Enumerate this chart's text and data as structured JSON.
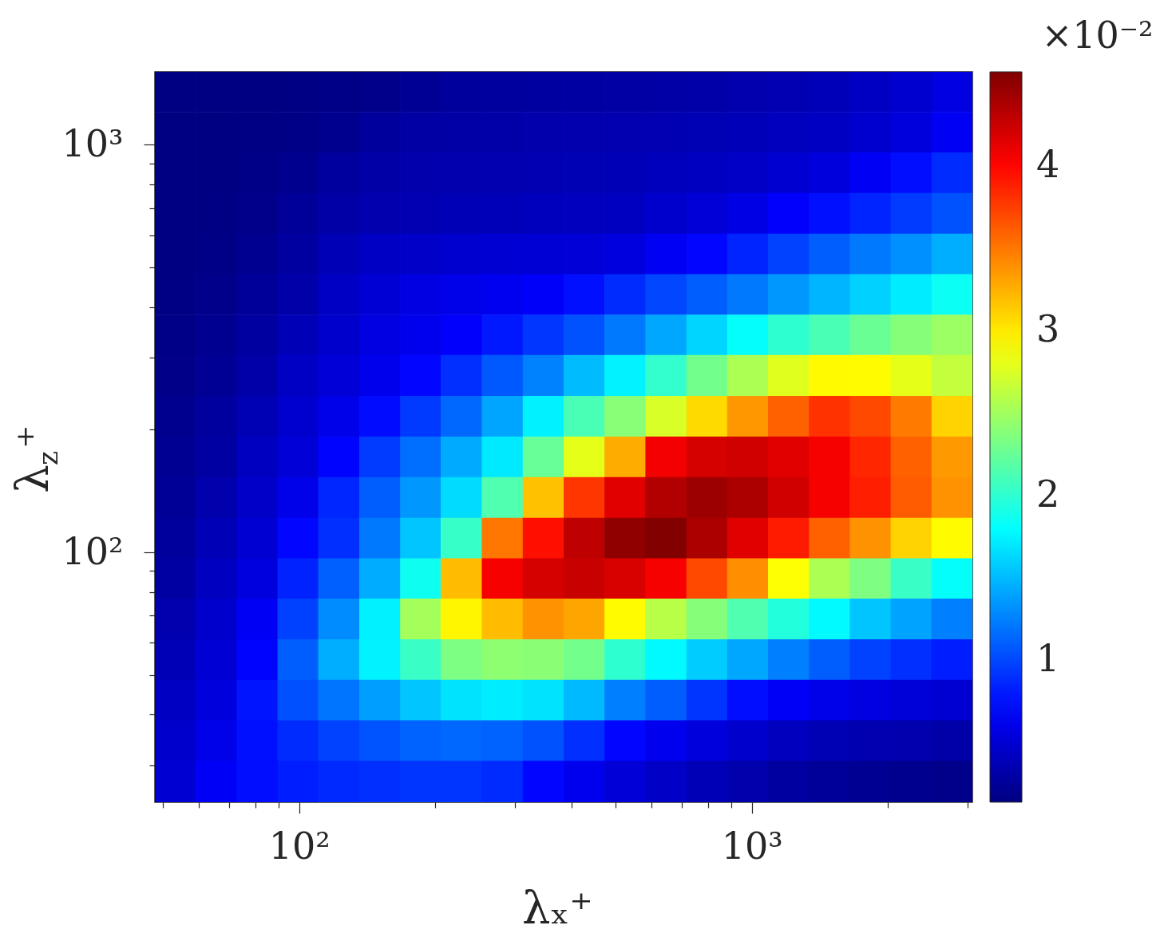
{
  "chart_data": {
    "type": "heatmap",
    "xlabel": "λₓ⁺",
    "ylabel": "λ$_{z}$⁺",
    "clabel": "×10⁻²",
    "x": [
      53.2,
      65.6,
      80.7,
      99.4,
      122,
      151,
      185,
      228,
      281,
      346,
      426,
      524,
      646,
      795,
      978,
      1205,
      1483,
      1826,
      2247,
      2767
    ],
    "y": [
      1346,
      1071,
      851,
      677,
      538,
      428,
      341,
      271,
      215,
      171,
      136,
      108,
      86.1,
      68.5,
      54.4,
      43.3,
      34.4,
      27.4
    ],
    "cells": [
      [
        0.15,
        0.15,
        0.15,
        0.16,
        0.17,
        0.19,
        0.23,
        0.26,
        0.27,
        0.28,
        0.29,
        0.3,
        0.31,
        0.32,
        0.34,
        0.36,
        0.39,
        0.43,
        0.48,
        0.56
      ],
      [
        0.15,
        0.15,
        0.16,
        0.17,
        0.2,
        0.26,
        0.3,
        0.31,
        0.32,
        0.33,
        0.34,
        0.35,
        0.36,
        0.37,
        0.39,
        0.41,
        0.43,
        0.48,
        0.54,
        0.64
      ],
      [
        0.15,
        0.15,
        0.17,
        0.2,
        0.27,
        0.31,
        0.33,
        0.34,
        0.35,
        0.36,
        0.37,
        0.38,
        0.4,
        0.42,
        0.45,
        0.49,
        0.54,
        0.65,
        0.75,
        0.88
      ],
      [
        0.15,
        0.16,
        0.19,
        0.25,
        0.31,
        0.34,
        0.36,
        0.38,
        0.39,
        0.4,
        0.41,
        0.42,
        0.47,
        0.52,
        0.58,
        0.68,
        0.76,
        0.85,
        0.95,
        1.05
      ],
      [
        0.15,
        0.17,
        0.21,
        0.28,
        0.38,
        0.44,
        0.46,
        0.48,
        0.5,
        0.51,
        0.52,
        0.55,
        0.64,
        0.72,
        0.85,
        0.98,
        1.1,
        1.22,
        1.32,
        1.45
      ],
      [
        0.16,
        0.19,
        0.25,
        0.32,
        0.44,
        0.51,
        0.57,
        0.6,
        0.63,
        0.67,
        0.76,
        0.88,
        1.0,
        1.1,
        1.22,
        1.35,
        1.48,
        1.6,
        1.72,
        1.85
      ],
      [
        0.17,
        0.21,
        0.28,
        0.38,
        0.47,
        0.56,
        0.62,
        0.68,
        0.8,
        0.93,
        1.05,
        1.22,
        1.42,
        1.62,
        1.82,
        2.0,
        2.12,
        2.26,
        2.38,
        2.48
      ],
      [
        0.18,
        0.23,
        0.32,
        0.44,
        0.52,
        0.61,
        0.72,
        0.9,
        1.08,
        1.26,
        1.51,
        1.75,
        2.02,
        2.3,
        2.55,
        2.78,
        2.93,
        2.92,
        2.8,
        2.65
      ],
      [
        0.2,
        0.27,
        0.37,
        0.48,
        0.6,
        0.74,
        0.94,
        1.14,
        1.41,
        1.74,
        2.12,
        2.39,
        2.74,
        3.07,
        3.36,
        3.6,
        3.8,
        3.7,
        3.48,
        3.1
      ],
      [
        0.22,
        0.29,
        0.42,
        0.52,
        0.71,
        0.95,
        1.17,
        1.43,
        1.71,
        2.25,
        2.8,
        3.27,
        4.07,
        4.2,
        4.22,
        4.15,
        4.05,
        3.85,
        3.6,
        3.35
      ],
      [
        0.24,
        0.33,
        0.46,
        0.6,
        0.86,
        1.1,
        1.35,
        1.65,
        2.15,
        3.18,
        3.78,
        4.15,
        4.35,
        4.45,
        4.38,
        4.22,
        4.05,
        3.88,
        3.62,
        3.38
      ],
      [
        0.26,
        0.38,
        0.5,
        0.72,
        0.9,
        1.22,
        1.55,
        2.04,
        3.5,
        3.95,
        4.3,
        4.5,
        4.56,
        4.38,
        4.15,
        3.9,
        3.6,
        3.38,
        3.1,
        2.92
      ],
      [
        0.29,
        0.42,
        0.55,
        0.84,
        1.11,
        1.44,
        1.86,
        3.2,
        4.05,
        4.2,
        4.25,
        4.18,
        4.05,
        3.7,
        3.4,
        2.9,
        2.55,
        2.35,
        2.05,
        1.82
      ],
      [
        0.34,
        0.47,
        0.65,
        0.97,
        1.3,
        1.74,
        2.52,
        2.95,
        3.2,
        3.38,
        3.3,
        2.92,
        2.6,
        2.38,
        2.15,
        1.95,
        1.78,
        1.55,
        1.4,
        1.25
      ],
      [
        0.38,
        0.51,
        0.71,
        1.1,
        1.45,
        1.75,
        2.05,
        2.34,
        2.42,
        2.4,
        2.3,
        2.0,
        1.78,
        1.58,
        1.42,
        1.25,
        1.1,
        0.98,
        0.9,
        0.82
      ],
      [
        0.43,
        0.54,
        0.78,
        1.04,
        1.2,
        1.38,
        1.55,
        1.68,
        1.72,
        1.68,
        1.5,
        1.25,
        1.1,
        0.92,
        0.75,
        0.66,
        0.6,
        0.56,
        0.53,
        0.5
      ],
      [
        0.47,
        0.6,
        0.76,
        0.88,
        0.98,
        1.06,
        1.12,
        1.14,
        1.12,
        1.05,
        0.9,
        0.72,
        0.62,
        0.54,
        0.47,
        0.41,
        0.37,
        0.35,
        0.34,
        0.32
      ],
      [
        0.5,
        0.66,
        0.75,
        0.82,
        0.87,
        0.9,
        0.92,
        0.92,
        0.88,
        0.72,
        0.62,
        0.52,
        0.45,
        0.38,
        0.33,
        0.28,
        0.25,
        0.22,
        0.2,
        0.19
      ]
    ],
    "xlim": [
      48,
      3070
    ],
    "ylim": [
      24.4,
      1510
    ],
    "log": "xy",
    "xticks": [
      {
        "value": 50,
        "label": null
      },
      {
        "value": 60,
        "label": null
      },
      {
        "value": 70,
        "label": null
      },
      {
        "value": 80,
        "label": null
      },
      {
        "value": 90,
        "label": null
      },
      {
        "value": 100,
        "label": "10²"
      },
      {
        "value": 200,
        "label": null
      },
      {
        "value": 300,
        "label": null
      },
      {
        "value": 400,
        "label": null
      },
      {
        "value": 500,
        "label": null
      },
      {
        "value": 600,
        "label": null
      },
      {
        "value": 700,
        "label": null
      },
      {
        "value": 800,
        "label": null
      },
      {
        "value": 900,
        "label": null
      },
      {
        "value": 1000,
        "label": "10³"
      },
      {
        "value": 2000,
        "label": null
      },
      {
        "value": 3000,
        "label": null
      }
    ],
    "yticks": [
      {
        "value": 30,
        "label": null
      },
      {
        "value": 40,
        "label": null
      },
      {
        "value": 50,
        "label": null
      },
      {
        "value": 60,
        "label": null
      },
      {
        "value": 70,
        "label": null
      },
      {
        "value": 80,
        "label": null
      },
      {
        "value": 90,
        "label": null
      },
      {
        "value": 100,
        "label": "10²"
      },
      {
        "value": 200,
        "label": null
      },
      {
        "value": 300,
        "label": null
      },
      {
        "value": 400,
        "label": null
      },
      {
        "value": 500,
        "label": null
      },
      {
        "value": 600,
        "label": null
      },
      {
        "value": 700,
        "label": null
      },
      {
        "value": 800,
        "label": null
      },
      {
        "value": 900,
        "label": null
      },
      {
        "value": 1000,
        "label": "10³"
      }
    ],
    "clim": [
      0.14,
      4.57
    ],
    "cticks": [
      1,
      2,
      3,
      4
    ]
  }
}
